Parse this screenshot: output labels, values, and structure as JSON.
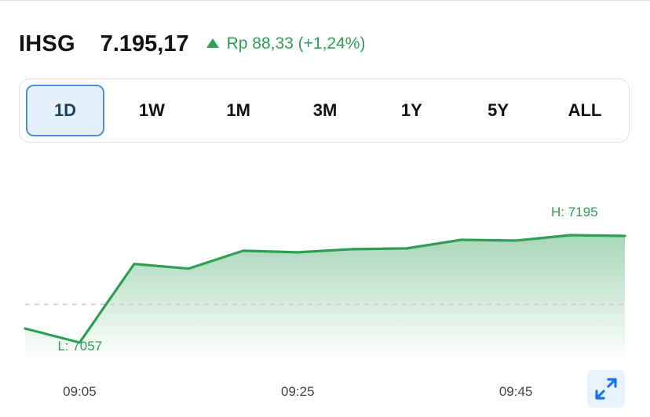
{
  "header": {
    "ticker": "IHSG",
    "price": "7.195,17",
    "change": "Rp 88,33 (+1,24%)",
    "change_direction_icon": "triangle-up-icon",
    "positive_color": "#2e9e55"
  },
  "range_tabs": [
    {
      "label": "1D",
      "active": true
    },
    {
      "label": "1W",
      "active": false
    },
    {
      "label": "1M",
      "active": false
    },
    {
      "label": "3M",
      "active": false
    },
    {
      "label": "1Y",
      "active": false
    },
    {
      "label": "5Y",
      "active": false
    },
    {
      "label": "ALL",
      "active": false
    }
  ],
  "chart_data": {
    "type": "area",
    "x": [
      "09:00",
      "09:05",
      "09:10",
      "09:15",
      "09:20",
      "09:25",
      "09:30",
      "09:35",
      "09:40",
      "09:45",
      "09:50",
      "09:55"
    ],
    "x_tick_labels": [
      "09:05",
      "09:25",
      "09:45"
    ],
    "series": [
      {
        "values": [
          7075,
          7057,
          7158,
          7152,
          7175,
          7173,
          7177,
          7178,
          7189,
          7188,
          7195,
          7194
        ]
      }
    ],
    "high_label": "H: 7195",
    "low_label": "L: 7057",
    "reference_line": 7106,
    "line_color": "#2e9e55",
    "fill_color": "#2e9e55",
    "reference_line_style": "dashed",
    "grid": false
  },
  "controls": {
    "expand_icon": "expand-arrows-icon",
    "accent": "#1a73e8"
  }
}
